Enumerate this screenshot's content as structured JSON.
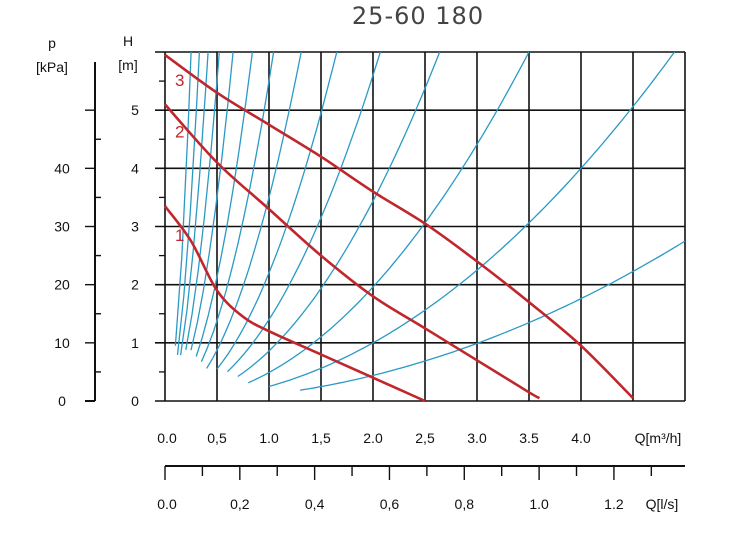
{
  "chart_data": {
    "type": "line",
    "title": "25-60 180",
    "colors": {
      "pump_curve": "#c0272d",
      "system_curve": "#2a9ac4",
      "grid": "#111111"
    },
    "head_axis": {
      "label": "H",
      "unit": "[m]",
      "ylim": [
        0,
        6
      ],
      "ticks": [
        "0",
        "1",
        "2",
        "3",
        "4",
        "5"
      ]
    },
    "pressure_axis": {
      "label": "p",
      "unit": "[kPa]",
      "range": [
        0,
        60
      ],
      "ticks": [
        "0",
        "10",
        "20",
        "30",
        "40"
      ]
    },
    "flow_m3h_axis": {
      "label": "Q[m³/h]",
      "xlim": [
        0,
        5
      ],
      "ticks": [
        "0.0",
        "0,5",
        "1.0",
        "1,5",
        "2.0",
        "2,5",
        "3.0",
        "3.5",
        "4.0"
      ]
    },
    "flow_ls_axis": {
      "label": "Q[l/s]",
      "xlim": [
        0,
        1.39
      ],
      "ticks": [
        "0.0",
        "0,2",
        "0,4",
        "0,6",
        "0,8",
        "1.0",
        "1.2"
      ]
    },
    "series": [
      {
        "name": "1",
        "x": [
          0.0,
          0.25,
          0.5,
          0.75,
          1.0,
          1.5,
          2.0,
          2.5
        ],
        "y": [
          3.35,
          2.75,
          1.9,
          1.45,
          1.2,
          0.8,
          0.4,
          0.0
        ]
      },
      {
        "name": "2",
        "x": [
          0.0,
          0.5,
          1.0,
          1.5,
          2.0,
          2.5,
          3.0,
          3.5,
          3.6
        ],
        "y": [
          5.1,
          4.1,
          3.3,
          2.5,
          1.8,
          1.25,
          0.7,
          0.15,
          0.05
        ]
      },
      {
        "name": "3",
        "x": [
          0.0,
          0.5,
          1.0,
          1.5,
          2.0,
          2.5,
          3.0,
          3.5,
          4.0,
          4.5
        ],
        "y": [
          5.95,
          5.3,
          4.75,
          4.2,
          3.6,
          3.05,
          2.4,
          1.7,
          0.95,
          0.05
        ]
      }
    ],
    "system_curves": [
      {
        "k": 95,
        "xmin": 0.1
      },
      {
        "k": 55,
        "xmin": 0.12
      },
      {
        "k": 35,
        "xmin": 0.15
      },
      {
        "k": 22,
        "xmin": 0.2
      },
      {
        "k": 14,
        "xmin": 0.25
      },
      {
        "k": 8.5,
        "xmin": 0.3
      },
      {
        "k": 5.5,
        "xmin": 0.35
      },
      {
        "k": 3.5,
        "xmin": 0.4
      },
      {
        "k": 2.2,
        "xmin": 0.5
      },
      {
        "k": 1.4,
        "xmin": 0.6
      },
      {
        "k": 0.86,
        "xmin": 0.7
      },
      {
        "k": 0.49,
        "xmin": 0.8
      },
      {
        "k": 0.25,
        "xmin": 1.0
      },
      {
        "k": 0.11,
        "xmin": 1.3
      }
    ]
  }
}
